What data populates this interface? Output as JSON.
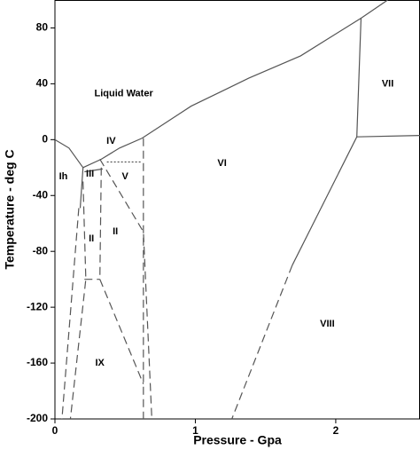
{
  "chart_data": {
    "type": "line",
    "xlabel": "Pressure - Gpa",
    "ylabel": "Temperature - deg C",
    "xlim": [
      0,
      2.6
    ],
    "ylim": [
      -200,
      100
    ],
    "xticks": [
      0,
      1,
      2
    ],
    "yticks": [
      80,
      40,
      0,
      -40,
      -80,
      -120,
      -160,
      -200
    ],
    "color": "#555555",
    "series": [
      {
        "style": "solid",
        "x": [
          0,
          0.1,
          0.2
        ],
        "values": [
          0,
          -6,
          -20
        ]
      },
      {
        "style": "solid",
        "x": [
          0.2,
          0.33,
          0.46,
          0.62,
          0.97,
          1.38,
          1.75,
          2.18,
          2.37
        ],
        "values": [
          -20,
          -14,
          -6,
          1,
          24,
          44,
          60,
          87,
          100
        ]
      },
      {
        "style": "solid",
        "x": [
          2.18,
          2.15,
          2.6
        ],
        "values": [
          87,
          2,
          3
        ]
      },
      {
        "style": "solid",
        "x": [
          2.15,
          1.69
        ],
        "values": [
          2,
          -90
        ]
      },
      {
        "style": "dashed",
        "x": [
          1.69,
          1.26
        ],
        "values": [
          -90,
          -200
        ]
      },
      {
        "style": "solid",
        "x": [
          0.2,
          0.18
        ],
        "values": [
          -20,
          -49
        ]
      },
      {
        "style": "solid",
        "x": [
          0.21,
          0.34
        ],
        "values": [
          -23,
          -21
        ]
      },
      {
        "style": "dotted",
        "x": [
          0.37,
          0.62
        ],
        "values": [
          -16,
          -16
        ]
      },
      {
        "style": "dashed",
        "x": [
          0.63,
          0.63
        ],
        "values": [
          1,
          -200
        ]
      },
      {
        "style": "dashed",
        "x": [
          0.32,
          0.63,
          0.69
        ],
        "values": [
          -14,
          -66,
          -200
        ]
      },
      {
        "style": "dashed",
        "x": [
          0.33,
          0.32
        ],
        "values": [
          -20,
          -100
        ]
      },
      {
        "style": "dashed",
        "x": [
          0.21,
          0.32
        ],
        "values": [
          -100,
          -100
        ]
      },
      {
        "style": "dashed",
        "x": [
          0.32,
          0.63
        ],
        "values": [
          -100,
          -175
        ]
      },
      {
        "style": "dashed",
        "x": [
          0.2,
          0.22,
          0.11
        ],
        "values": [
          -30,
          -100,
          -200
        ]
      },
      {
        "style": "dashed",
        "x": [
          0.17,
          0.05
        ],
        "values": [
          -49,
          -200
        ]
      }
    ],
    "annotations": [
      {
        "text": "Liquid Water",
        "x": 0.49,
        "y": 33
      },
      {
        "text": "Ih",
        "x": 0.06,
        "y": -26.5
      },
      {
        "text": "III",
        "x": 0.25,
        "y": -24.6
      },
      {
        "text": "IV",
        "x": 0.4,
        "y": -1
      },
      {
        "text": "V",
        "x": 0.5,
        "y": -26.5
      },
      {
        "text": "VI",
        "x": 1.19,
        "y": -17
      },
      {
        "text": "VII",
        "x": 2.37,
        "y": 40
      },
      {
        "text": "II",
        "x": 0.26,
        "y": -71
      },
      {
        "text": "II",
        "x": 0.43,
        "y": -66
      },
      {
        "text": "IX",
        "x": 0.32,
        "y": -160
      },
      {
        "text": "VIII",
        "x": 1.94,
        "y": -132
      }
    ]
  }
}
